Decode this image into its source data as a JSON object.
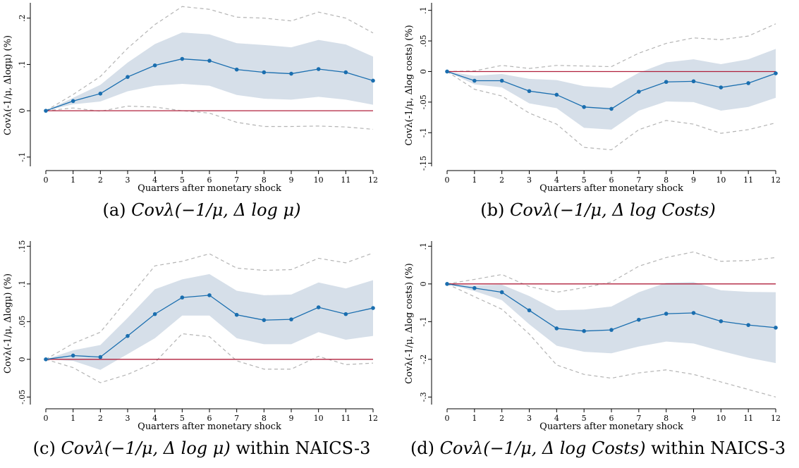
{
  "chart_data": [
    {
      "type": "line",
      "xlabel": "Quarters after monetary shock",
      "ylabel": "Covλ(-1/μ, Δlogμ) (%)",
      "ylim": [
        -0.12,
        0.23
      ],
      "yticks": [
        -0.1,
        0,
        0.1,
        0.2
      ],
      "ytick_labels": [
        "-.1",
        "0",
        ".1",
        ".2"
      ],
      "x": [
        0,
        1,
        2,
        3,
        4,
        5,
        6,
        7,
        8,
        9,
        10,
        11,
        12
      ],
      "series": [
        {
          "role": "estimate",
          "values": [
            0,
            0.021,
            0.037,
            0.073,
            0.098,
            0.112,
            0.108,
            0.089,
            0.083,
            0.08,
            0.09,
            0.083,
            0.065
          ]
        },
        {
          "role": "band_upper",
          "values": [
            0,
            0.028,
            0.056,
            0.104,
            0.144,
            0.169,
            0.165,
            0.146,
            0.142,
            0.137,
            0.153,
            0.143,
            0.117
          ]
        },
        {
          "role": "band_lower",
          "values": [
            0,
            0.014,
            0.02,
            0.042,
            0.054,
            0.058,
            0.054,
            0.034,
            0.026,
            0.024,
            0.03,
            0.024,
            0.013
          ]
        },
        {
          "role": "ci_upper",
          "values": [
            0,
            0.035,
            0.074,
            0.135,
            0.186,
            0.225,
            0.219,
            0.202,
            0.2,
            0.194,
            0.213,
            0.2,
            0.168
          ]
        },
        {
          "role": "ci_lower",
          "values": [
            0,
            0.006,
            -0.001,
            0.01,
            0.008,
            0,
            -0.005,
            -0.025,
            -0.034,
            -0.034,
            -0.033,
            -0.035,
            -0.04
          ]
        }
      ],
      "colors": {
        "estimate": "#1a6eaf",
        "band": "#d6dfe9",
        "ci": "#b4b4b4",
        "zero": "#b0203c"
      },
      "caption_pre": "(a) ",
      "caption_math": "Covλ(−1/μ, Δ log μ)",
      "caption_post": ""
    },
    {
      "type": "line",
      "xlabel": "Quarters after monetary shock",
      "ylabel": "Covλ(-1/μ, Δlog costs) (%)",
      "ylim": [
        -0.155,
        0.11
      ],
      "yticks": [
        -0.15,
        -0.1,
        -0.05,
        0,
        0.05,
        0.1
      ],
      "ytick_labels": [
        "-.15",
        "-.1",
        "-.05",
        "0",
        ".05",
        ".1"
      ],
      "x": [
        0,
        1,
        2,
        3,
        4,
        5,
        6,
        7,
        8,
        9,
        10,
        11,
        12
      ],
      "series": [
        {
          "role": "estimate",
          "values": [
            0,
            -0.015,
            -0.015,
            -0.032,
            -0.038,
            -0.058,
            -0.061,
            -0.033,
            -0.017,
            -0.016,
            -0.026,
            -0.019,
            -0.003
          ]
        },
        {
          "role": "band_upper",
          "values": [
            0,
            -0.007,
            -0.004,
            -0.012,
            -0.014,
            -0.024,
            -0.027,
            -0.002,
            0.015,
            0.02,
            0.012,
            0.02,
            0.037
          ]
        },
        {
          "role": "band_lower",
          "values": [
            0,
            -0.021,
            -0.026,
            -0.052,
            -0.06,
            -0.092,
            -0.095,
            -0.064,
            -0.049,
            -0.05,
            -0.064,
            -0.058,
            -0.043
          ]
        },
        {
          "role": "ci_upper",
          "values": [
            0,
            0.001,
            0.01,
            0.005,
            0.01,
            0.009,
            0.008,
            0.03,
            0.046,
            0.055,
            0.052,
            0.058,
            0.078
          ]
        },
        {
          "role": "ci_lower",
          "values": [
            0,
            -0.029,
            -0.04,
            -0.068,
            -0.086,
            -0.124,
            -0.128,
            -0.095,
            -0.08,
            -0.086,
            -0.101,
            -0.095,
            -0.084
          ]
        }
      ],
      "colors": {
        "estimate": "#1a6eaf",
        "band": "#d6dfe9",
        "ci": "#b4b4b4",
        "zero": "#b0203c"
      },
      "caption_pre": "(b) ",
      "caption_math": "Covλ(−1/μ, Δ log Costs)",
      "caption_post": ""
    },
    {
      "type": "line",
      "xlabel": "Quarters after monetary shock",
      "ylabel": "Covλ(-1/μ, Δlogμ) (%)",
      "ylim": [
        -0.06,
        0.155
      ],
      "yticks": [
        -0.05,
        0,
        0.05,
        0.1,
        0.15
      ],
      "ytick_labels": [
        "-.05",
        "0",
        ".05",
        ".1",
        ".15"
      ],
      "x": [
        0,
        1,
        2,
        3,
        4,
        5,
        6,
        7,
        8,
        9,
        10,
        11,
        12
      ],
      "series": [
        {
          "role": "estimate",
          "values": [
            0,
            0.005,
            0.003,
            0.031,
            0.06,
            0.082,
            0.085,
            0.059,
            0.052,
            0.053,
            0.069,
            0.06,
            0.068
          ]
        },
        {
          "role": "band_upper",
          "values": [
            0,
            0.012,
            0.019,
            0.055,
            0.093,
            0.106,
            0.113,
            0.091,
            0.085,
            0.086,
            0.102,
            0.094,
            0.105
          ]
        },
        {
          "role": "band_lower",
          "values": [
            0,
            -0.002,
            -0.014,
            0.007,
            0.028,
            0.058,
            0.058,
            0.028,
            0.02,
            0.02,
            0.036,
            0.026,
            0.031
          ]
        },
        {
          "role": "ci_upper",
          "values": [
            0,
            0.021,
            0.036,
            0.08,
            0.124,
            0.13,
            0.14,
            0.121,
            0.118,
            0.119,
            0.134,
            0.128,
            0.141
          ]
        },
        {
          "role": "ci_lower",
          "values": [
            0,
            -0.011,
            -0.031,
            -0.02,
            -0.004,
            0.034,
            0.03,
            -0.002,
            -0.013,
            -0.013,
            0.004,
            -0.007,
            -0.005
          ]
        }
      ],
      "colors": {
        "estimate": "#1a6eaf",
        "band": "#d6dfe9",
        "ci": "#b4b4b4",
        "zero": "#b0203c"
      },
      "caption_pre": "(c) ",
      "caption_math": "Covλ(−1/μ, Δ log μ)",
      "caption_post": " within NAICS-3"
    },
    {
      "type": "line",
      "xlabel": "Quarters after monetary shock",
      "ylabel": "Covλ(-1/μ, Δlog costs) (%)",
      "ylim": [
        -0.32,
        0.11
      ],
      "yticks": [
        -0.3,
        -0.2,
        -0.1,
        0,
        0.1
      ],
      "ytick_labels": [
        "-.3",
        "-.2",
        "-.1",
        "0",
        ".1"
      ],
      "x": [
        0,
        1,
        2,
        3,
        4,
        5,
        6,
        7,
        8,
        9,
        10,
        11,
        12
      ],
      "series": [
        {
          "role": "estimate",
          "values": [
            0,
            -0.011,
            -0.022,
            -0.07,
            -0.118,
            -0.125,
            -0.122,
            -0.095,
            -0.079,
            -0.077,
            -0.099,
            -0.109,
            -0.116
          ]
        },
        {
          "role": "band_upper",
          "values": [
            0,
            -0.004,
            -0.002,
            -0.032,
            -0.07,
            -0.068,
            -0.06,
            -0.022,
            0.003,
            0.005,
            -0.017,
            -0.021,
            -0.022
          ]
        },
        {
          "role": "band_lower",
          "values": [
            0,
            -0.019,
            -0.043,
            -0.107,
            -0.164,
            -0.18,
            -0.184,
            -0.166,
            -0.153,
            -0.158,
            -0.178,
            -0.196,
            -0.21
          ]
        },
        {
          "role": "ci_upper",
          "values": [
            0,
            0.012,
            0.025,
            -0.007,
            -0.022,
            -0.01,
            0.005,
            0.047,
            0.07,
            0.085,
            0.06,
            0.062,
            0.07
          ]
        },
        {
          "role": "ci_lower",
          "values": [
            0,
            -0.034,
            -0.067,
            -0.133,
            -0.215,
            -0.24,
            -0.25,
            -0.236,
            -0.228,
            -0.24,
            -0.26,
            -0.28,
            -0.3
          ]
        }
      ],
      "colors": {
        "estimate": "#1a6eaf",
        "band": "#d6dfe9",
        "ci": "#b4b4b4",
        "zero": "#b0203c"
      },
      "caption_pre": "(d) ",
      "caption_math": "Covλ(−1/μ, Δ log Costs)",
      "caption_post": " within NAICS-3"
    }
  ]
}
